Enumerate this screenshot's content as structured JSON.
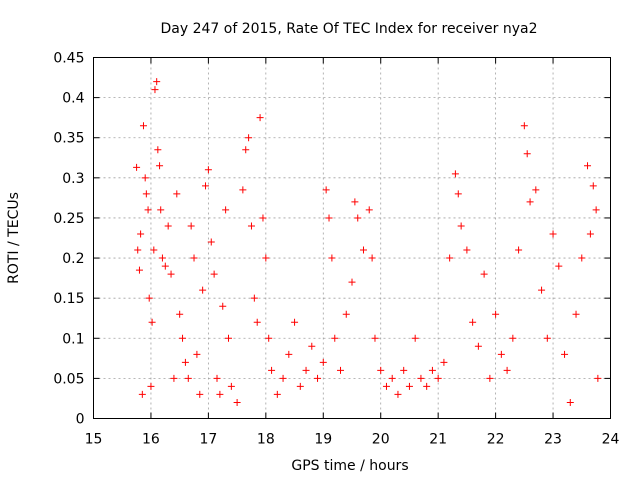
{
  "chart_data": {
    "type": "scatter",
    "title": "Day 247 of 2015, Rate Of TEC Index for receiver nya2",
    "xlabel": "GPS time / hours",
    "ylabel": "ROTI / TECUs",
    "xlim": [
      15,
      24
    ],
    "ylim": [
      0,
      0.45
    ],
    "xticks": [
      15,
      16,
      17,
      18,
      19,
      20,
      21,
      22,
      23,
      24
    ],
    "yticks": [
      0,
      0.05,
      0.1,
      0.15,
      0.2,
      0.25,
      0.3,
      0.35,
      0.4,
      0.45
    ],
    "xtick_labels": [
      "15",
      "16",
      "17",
      "18",
      "19",
      "20",
      "21",
      "22",
      "23",
      "24"
    ],
    "ytick_labels": [
      "0",
      "0.05",
      "0.1",
      "0.15",
      "0.2",
      "0.25",
      "0.3",
      "0.35",
      "0.4",
      "0.45"
    ],
    "grid": true,
    "marker": "+",
    "series": [
      {
        "name": "nya2",
        "color": "#ff0000",
        "points": [
          [
            15.75,
            0.313
          ],
          [
            15.77,
            0.21
          ],
          [
            15.8,
            0.185
          ],
          [
            15.82,
            0.23
          ],
          [
            15.85,
            0.03
          ],
          [
            15.87,
            0.365
          ],
          [
            15.9,
            0.3
          ],
          [
            15.92,
            0.28
          ],
          [
            15.95,
            0.26
          ],
          [
            15.97,
            0.15
          ],
          [
            16.0,
            0.04
          ],
          [
            16.02,
            0.12
          ],
          [
            16.05,
            0.21
          ],
          [
            16.07,
            0.41
          ],
          [
            16.1,
            0.42
          ],
          [
            16.12,
            0.335
          ],
          [
            16.15,
            0.315
          ],
          [
            16.17,
            0.26
          ],
          [
            16.2,
            0.2
          ],
          [
            16.25,
            0.19
          ],
          [
            16.3,
            0.24
          ],
          [
            16.35,
            0.18
          ],
          [
            16.4,
            0.05
          ],
          [
            16.45,
            0.28
          ],
          [
            16.5,
            0.13
          ],
          [
            16.55,
            0.1
          ],
          [
            16.6,
            0.07
          ],
          [
            16.65,
            0.05
          ],
          [
            16.7,
            0.24
          ],
          [
            16.75,
            0.2
          ],
          [
            16.8,
            0.08
          ],
          [
            16.85,
            0.03
          ],
          [
            16.9,
            0.16
          ],
          [
            16.95,
            0.29
          ],
          [
            17.0,
            0.31
          ],
          [
            17.05,
            0.22
          ],
          [
            17.1,
            0.18
          ],
          [
            17.15,
            0.05
          ],
          [
            17.2,
            0.03
          ],
          [
            17.25,
            0.14
          ],
          [
            17.3,
            0.26
          ],
          [
            17.35,
            0.1
          ],
          [
            17.4,
            0.04
          ],
          [
            17.5,
            0.02
          ],
          [
            17.6,
            0.285
          ],
          [
            17.65,
            0.335
          ],
          [
            17.7,
            0.35
          ],
          [
            17.75,
            0.24
          ],
          [
            17.8,
            0.15
          ],
          [
            17.85,
            0.12
          ],
          [
            17.9,
            0.375
          ],
          [
            17.95,
            0.25
          ],
          [
            18.0,
            0.2
          ],
          [
            18.05,
            0.1
          ],
          [
            18.1,
            0.06
          ],
          [
            18.2,
            0.03
          ],
          [
            18.3,
            0.05
          ],
          [
            18.4,
            0.08
          ],
          [
            18.5,
            0.12
          ],
          [
            18.6,
            0.04
          ],
          [
            18.7,
            0.06
          ],
          [
            18.8,
            0.09
          ],
          [
            18.9,
            0.05
          ],
          [
            19.0,
            0.07
          ],
          [
            19.05,
            0.285
          ],
          [
            19.1,
            0.25
          ],
          [
            19.15,
            0.2
          ],
          [
            19.2,
            0.1
          ],
          [
            19.3,
            0.06
          ],
          [
            19.4,
            0.13
          ],
          [
            19.5,
            0.17
          ],
          [
            19.55,
            0.27
          ],
          [
            19.6,
            0.25
          ],
          [
            19.7,
            0.21
          ],
          [
            19.8,
            0.26
          ],
          [
            19.85,
            0.2
          ],
          [
            19.9,
            0.1
          ],
          [
            20.0,
            0.06
          ],
          [
            20.1,
            0.04
          ],
          [
            20.2,
            0.05
          ],
          [
            20.3,
            0.03
          ],
          [
            20.4,
            0.06
          ],
          [
            20.5,
            0.04
          ],
          [
            20.6,
            0.1
          ],
          [
            20.7,
            0.05
          ],
          [
            20.8,
            0.04
          ],
          [
            20.9,
            0.06
          ],
          [
            21.0,
            0.05
          ],
          [
            21.1,
            0.07
          ],
          [
            21.2,
            0.2
          ],
          [
            21.3,
            0.305
          ],
          [
            21.35,
            0.28
          ],
          [
            21.4,
            0.24
          ],
          [
            21.5,
            0.21
          ],
          [
            21.6,
            0.12
          ],
          [
            21.7,
            0.09
          ],
          [
            21.8,
            0.18
          ],
          [
            21.9,
            0.05
          ],
          [
            22.0,
            0.13
          ],
          [
            22.1,
            0.08
          ],
          [
            22.2,
            0.06
          ],
          [
            22.3,
            0.1
          ],
          [
            22.4,
            0.21
          ],
          [
            22.5,
            0.365
          ],
          [
            22.55,
            0.33
          ],
          [
            22.6,
            0.27
          ],
          [
            22.7,
            0.285
          ],
          [
            22.8,
            0.16
          ],
          [
            22.9,
            0.1
          ],
          [
            23.0,
            0.23
          ],
          [
            23.1,
            0.19
          ],
          [
            23.2,
            0.08
          ],
          [
            23.3,
            0.02
          ],
          [
            23.4,
            0.13
          ],
          [
            23.5,
            0.2
          ],
          [
            23.6,
            0.315
          ],
          [
            23.65,
            0.23
          ],
          [
            23.7,
            0.29
          ],
          [
            23.75,
            0.26
          ],
          [
            23.78,
            0.05
          ]
        ]
      }
    ]
  }
}
